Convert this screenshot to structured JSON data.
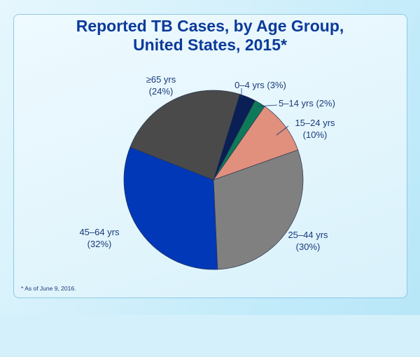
{
  "chart_data": {
    "type": "pie",
    "title": "Reported TB Cases, by Age Group, United States, 2015*",
    "title_lines": [
      "Reported TB Cases, by Age Group,",
      "United States, 2015*"
    ],
    "slices": [
      {
        "label": "0–4 yrs (3%)",
        "lines": [
          "0–4 yrs (3%)"
        ],
        "value": 3,
        "color": "#0a1f55"
      },
      {
        "label": "5–14 yrs (2%)",
        "lines": [
          "5–14 yrs (2%)"
        ],
        "value": 2,
        "color": "#0f7a5a"
      },
      {
        "label": "15–24 yrs (10%)",
        "lines": [
          "15–24 yrs",
          "(10%)"
        ],
        "value": 10,
        "color": "#e0907c"
      },
      {
        "label": "25–44 yrs (30%)",
        "lines": [
          "25–44 yrs",
          "(30%)"
        ],
        "value": 30,
        "color": "#808080"
      },
      {
        "label": "45–64 yrs (32%)",
        "lines": [
          "45–64 yrs",
          "(32%)"
        ],
        "value": 32,
        "color": "#0038b8"
      },
      {
        "label": "≥65 yrs (24%)",
        "lines": [
          "≥65 yrs",
          "(24%)"
        ],
        "value": 24,
        "color": "#4a4a4a"
      }
    ],
    "footnote": "*  As of June 9, 2016."
  }
}
